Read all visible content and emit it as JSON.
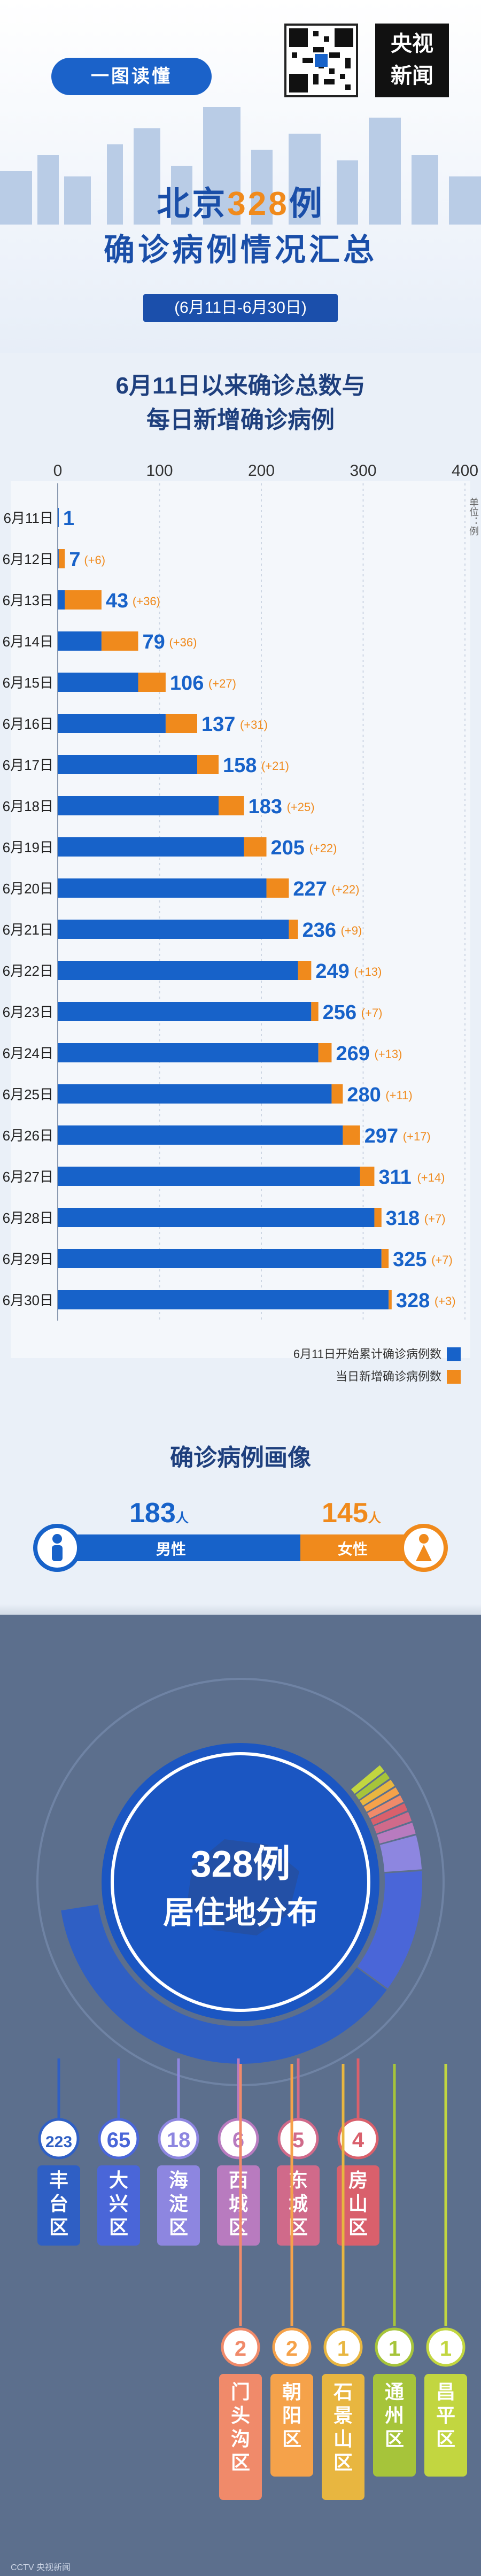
{
  "header": {
    "badge": "一图读懂",
    "logo_line1": "央视",
    "logo_line2": "新闻",
    "title_prefix": "北京",
    "title_number": "328",
    "title_suffix": "例",
    "title_line2": "确诊病例情况汇总",
    "date_range": "(6月11日-6月30日)"
  },
  "chart_title_line1": "6月11日以来确诊总数与",
  "chart_title_line2": "每日新增确诊病例",
  "chart_data": {
    "type": "bar",
    "orientation": "horizontal",
    "stacked": true,
    "categories": [
      "6月11日",
      "6月12日",
      "6月13日",
      "6月14日",
      "6月15日",
      "6月16日",
      "6月17日",
      "6月18日",
      "6月19日",
      "6月20日",
      "6月21日",
      "6月22日",
      "6月23日",
      "6月24日",
      "6月25日",
      "6月26日",
      "6月27日",
      "6月28日",
      "6月29日",
      "6月30日"
    ],
    "totals": [
      1,
      7,
      43,
      79,
      106,
      137,
      158,
      183,
      205,
      227,
      236,
      249,
      256,
      269,
      280,
      297,
      311,
      318,
      325,
      328
    ],
    "new_labels": [
      "",
      "(+6)",
      "(+36)",
      "(+36)",
      "(+27)",
      "(+31)",
      "(+21)",
      "(+25)",
      "(+22)",
      "(+22)",
      "(+9)",
      "(+13)",
      "(+7)",
      "(+13)",
      "(+11)",
      "(+17)",
      "(+14)",
      "(+7)",
      "(+7)",
      "(+3)"
    ],
    "series": [
      {
        "name": "6月11日开始累计确诊病例数",
        "color": "#1762c9",
        "values": [
          1,
          1,
          7,
          43,
          79,
          106,
          137,
          158,
          183,
          205,
          227,
          236,
          249,
          256,
          269,
          280,
          297,
          311,
          318,
          325
        ]
      },
      {
        "name": "当日新增确诊病例数",
        "color": "#f08a1c",
        "values": [
          0,
          6,
          36,
          36,
          27,
          31,
          21,
          25,
          22,
          22,
          9,
          13,
          7,
          13,
          11,
          17,
          14,
          7,
          7,
          3
        ]
      }
    ],
    "xticks": [
      0,
      100,
      200,
      300,
      400
    ],
    "xlim": [
      0,
      400
    ],
    "unit_label": "单位：例",
    "legend_position": "bottom-right"
  },
  "portrait": {
    "title": "确诊病例画像",
    "male_count": "183",
    "male_unit": "人",
    "male_label": "男性",
    "female_count": "145",
    "female_unit": "人",
    "female_label": "女性"
  },
  "distribution": {
    "title_line1": "328例",
    "title_line2": "居住地分布",
    "districts": [
      {
        "name": "丰台区",
        "count": "223",
        "color": "#2f5fc4"
      },
      {
        "name": "大兴区",
        "count": "65",
        "color": "#4a66d8"
      },
      {
        "name": "海淀区",
        "count": "18",
        "color": "#8d86e0"
      },
      {
        "name": "西城区",
        "count": "6",
        "color": "#b87bbf"
      },
      {
        "name": "东城区",
        "count": "5",
        "color": "#d06a8a"
      },
      {
        "name": "房山区",
        "count": "4",
        "color": "#d9606c"
      },
      {
        "name": "门头沟区",
        "count": "2",
        "color": "#f08a6a"
      },
      {
        "name": "朝阳区",
        "count": "2",
        "color": "#f5a24a"
      },
      {
        "name": "石景山区",
        "count": "1",
        "color": "#e8b640"
      },
      {
        "name": "通州区",
        "count": "1",
        "color": "#a6c43a"
      },
      {
        "name": "昌平区",
        "count": "1",
        "color": "#c2d640"
      }
    ]
  },
  "footer": "CCTV 央视新闻"
}
